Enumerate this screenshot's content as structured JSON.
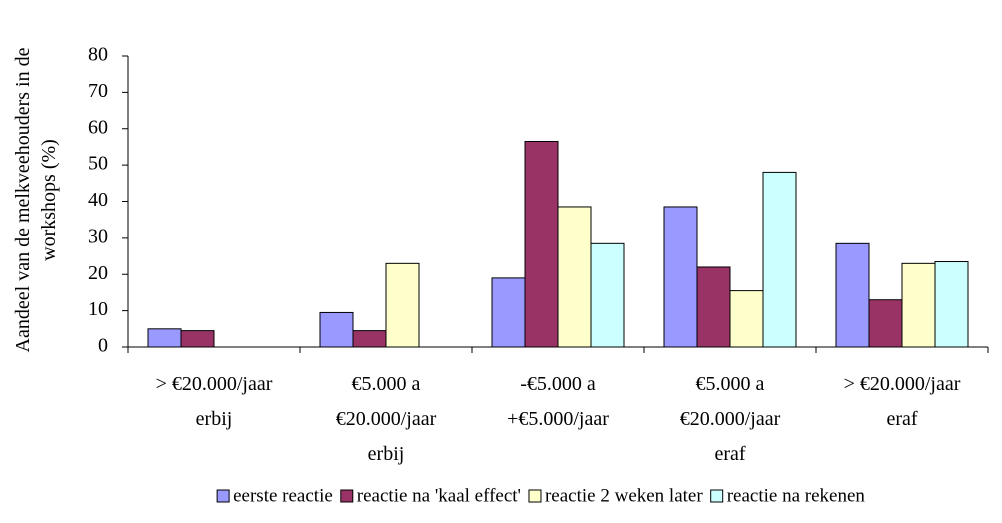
{
  "chart_data": {
    "type": "bar",
    "ylabel": "Aandeel van de melkveehouders in de\nworkshops (%)",
    "categories": [
      "> €20.000/jaar\nerbij",
      "€5.000 a\n€20.000/jaar\nerbij",
      "-€5.000 a\n+€5.000/jaar",
      "€5.000 a\n€20.000/jaar\neraf",
      "> €20.000/jaar\neraf"
    ],
    "series": [
      {
        "name": "eerste reactie",
        "color": "#9999ff",
        "values": [
          5,
          9.5,
          19,
          38.5,
          28.5
        ]
      },
      {
        "name": "reactie na 'kaal effect'",
        "color": "#993366",
        "values": [
          4.5,
          4.5,
          56.5,
          22,
          13
        ]
      },
      {
        "name": "reactie 2 weken later",
        "color": "#ffffcc",
        "values": [
          0,
          23,
          38.5,
          15.5,
          23
        ]
      },
      {
        "name": "reactie na rekenen",
        "color": "#ccffff",
        "values": [
          0,
          0,
          28.5,
          48,
          23.5
        ]
      }
    ],
    "ylim": [
      0,
      80
    ],
    "yticks": [
      0,
      10,
      20,
      30,
      40,
      50,
      60,
      70,
      80
    ],
    "grid": false,
    "legend": "bottom"
  }
}
